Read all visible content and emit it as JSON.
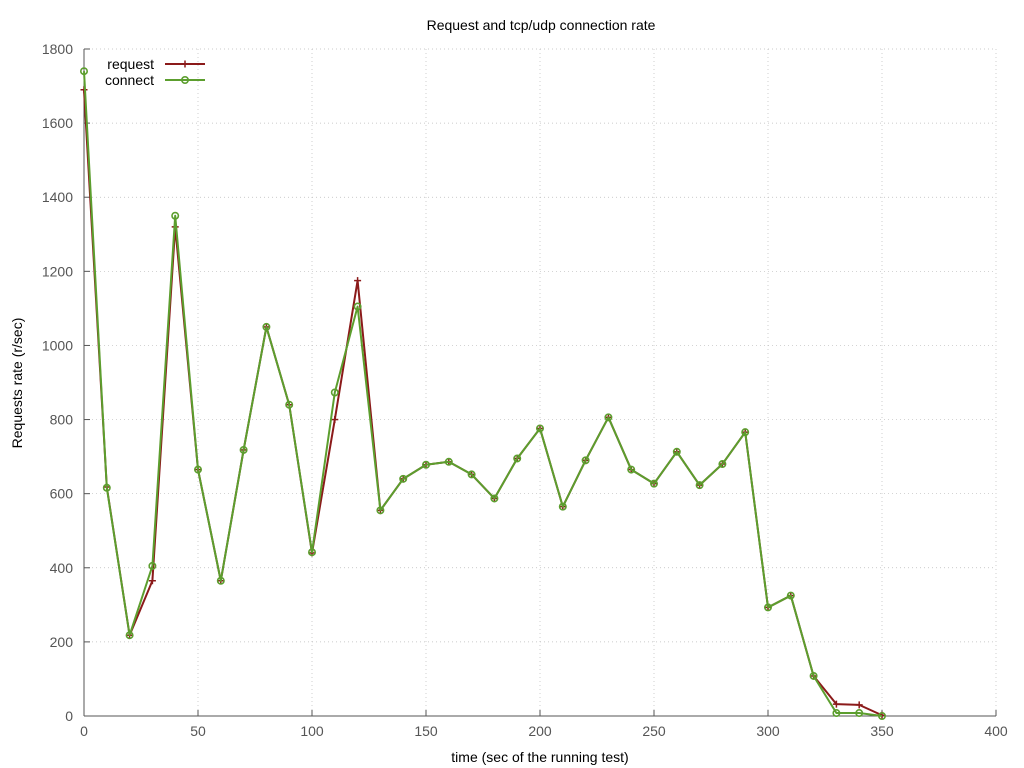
{
  "chart_data": {
    "type": "line",
    "title": "Request and tcp/udp connection rate",
    "xlabel": "time (sec of the running test)",
    "ylabel": "Requests rate (r/sec)",
    "xlim": [
      0,
      400
    ],
    "ylim": [
      0,
      1800
    ],
    "xticks": [
      0,
      50,
      100,
      150,
      200,
      250,
      300,
      350,
      400
    ],
    "yticks": [
      0,
      200,
      400,
      600,
      800,
      1000,
      1200,
      1400,
      1600,
      1800
    ],
    "grid": true,
    "legend_position": "top-left",
    "x": [
      0,
      10,
      20,
      30,
      40,
      50,
      60,
      70,
      80,
      90,
      100,
      110,
      120,
      130,
      140,
      150,
      160,
      170,
      180,
      190,
      200,
      210,
      220,
      230,
      240,
      250,
      260,
      270,
      280,
      290,
      300,
      310,
      320,
      330,
      340,
      350
    ],
    "series": [
      {
        "name": "request",
        "color": "#8b1a1a",
        "marker": "plus",
        "values": [
          1690,
          618,
          218,
          365,
          1320,
          665,
          365,
          718,
          1050,
          840,
          440,
          800,
          1175,
          555,
          640,
          678,
          686,
          652,
          587,
          695,
          776,
          565,
          690,
          806,
          665,
          627,
          713,
          623,
          680,
          766,
          293,
          325,
          108,
          32,
          30,
          2
        ]
      },
      {
        "name": "connect",
        "color": "#5c9e2e",
        "marker": "circle",
        "values": [
          1740,
          616,
          218,
          405,
          1350,
          665,
          365,
          718,
          1050,
          840,
          442,
          873,
          1105,
          555,
          640,
          678,
          686,
          652,
          587,
          695,
          776,
          565,
          690,
          806,
          665,
          627,
          713,
          623,
          680,
          766,
          293,
          325,
          108,
          8,
          8,
          0
        ]
      }
    ]
  }
}
